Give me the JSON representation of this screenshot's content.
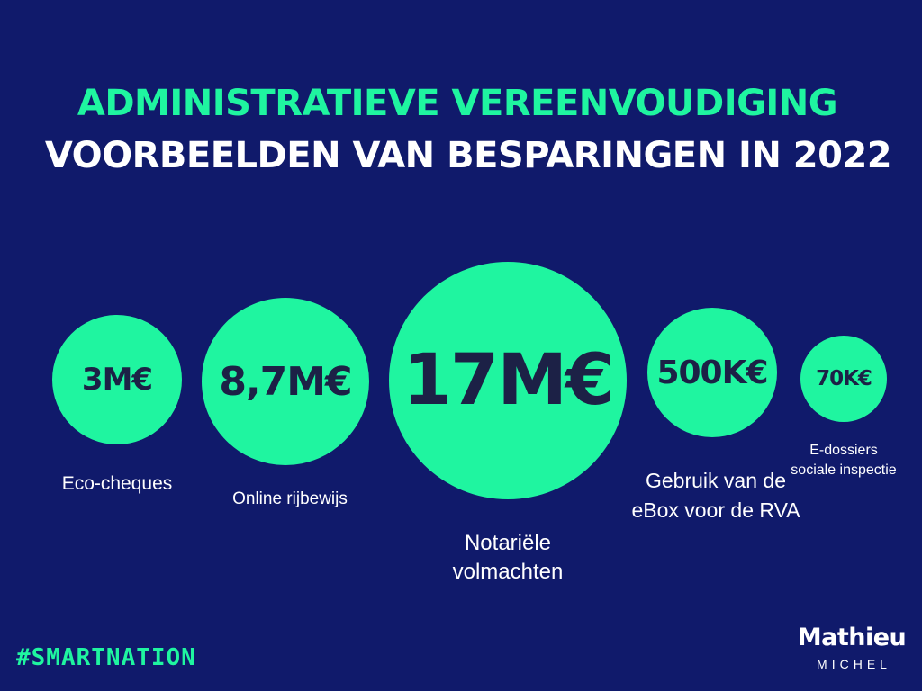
{
  "title": {
    "line1": "ADMINISTRATIEVE VEREENVOUDIGING",
    "line2": "VOORBEELDEN VAN BESPARINGEN IN 2022"
  },
  "savings": [
    {
      "value": "3M€",
      "label": "Eco-cheques"
    },
    {
      "value": "8,7M€",
      "label": "Online rijbewijs"
    },
    {
      "value": "17M€",
      "label": "Notariële volmachten"
    },
    {
      "value": "500K€",
      "label": "Gebruik van de eBox voor de RVA"
    },
    {
      "value": "70K€",
      "label": "E-dossiers sociale inspectie"
    }
  ],
  "footer": {
    "hashtag": "#SMARTNATION",
    "logo_name": "Mathieu",
    "logo_sub": "MICHEL"
  },
  "colors": {
    "background": "#101a6b",
    "accent": "#1ff5a0",
    "circle_text": "#1c2146"
  }
}
